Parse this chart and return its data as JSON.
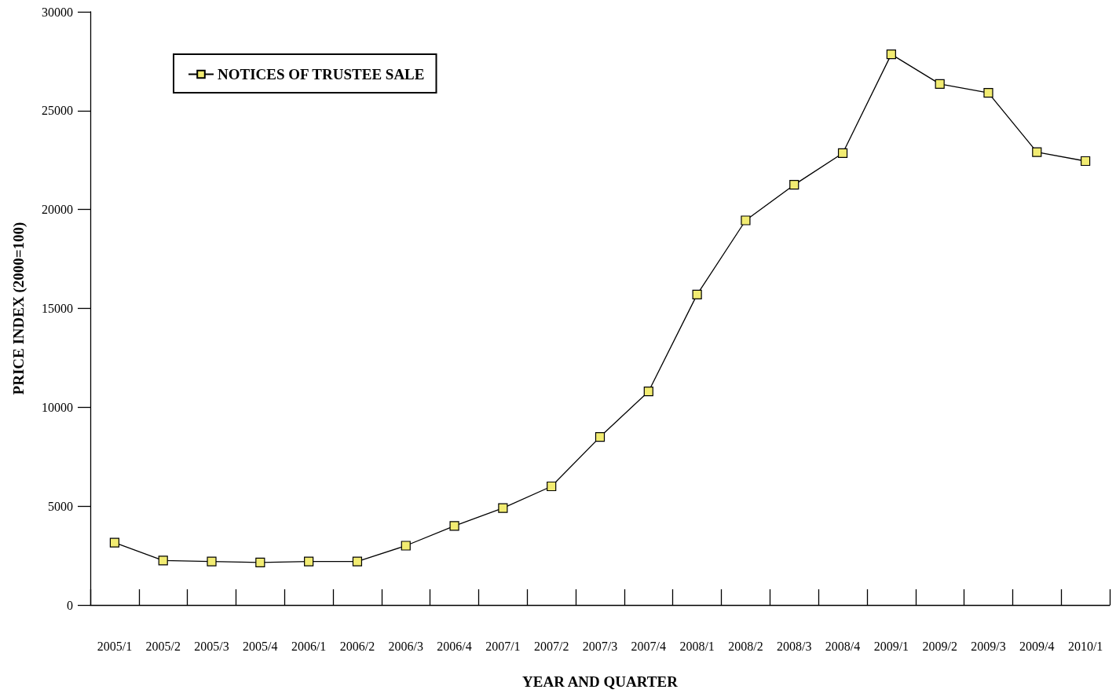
{
  "chart_data": {
    "type": "line",
    "xlabel": "YEAR AND QUARTER",
    "ylabel": "PRICE INDEX (2000=100)",
    "categories": [
      "2005/1",
      "2005/2",
      "2005/3",
      "2005/4",
      "2006/1",
      "2006/2",
      "2006/3",
      "2006/4",
      "2007/1",
      "2007/2",
      "2007/3",
      "2007/4",
      "2008/1",
      "2008/2",
      "2008/3",
      "2008/4",
      "2009/1",
      "2009/2",
      "2009/3",
      "2009/4",
      "2010/1"
    ],
    "series": [
      {
        "name": "NOTICES OF TRUSTEE SALE",
        "color": "#f2ec72",
        "values": [
          3150,
          2250,
          2200,
          2150,
          2200,
          2200,
          3000,
          4000,
          4900,
          6000,
          8500,
          10800,
          15700,
          19450,
          21250,
          22850,
          27850,
          26350,
          25900,
          22900,
          22450
        ]
      }
    ],
    "ylim": [
      0,
      30000
    ],
    "yticks": [
      0,
      5000,
      10000,
      15000,
      20000,
      25000,
      30000
    ],
    "grid": false,
    "legend": "top left",
    "marker": "square",
    "line_style": "solid"
  }
}
